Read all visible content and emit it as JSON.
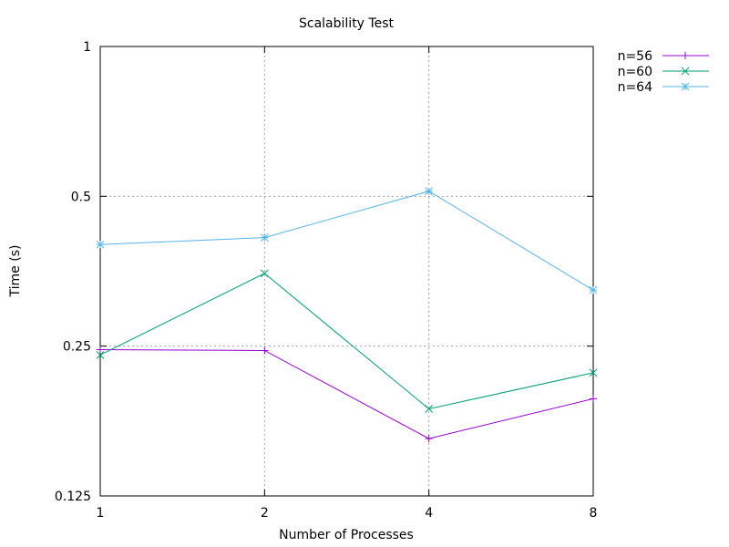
{
  "chart_data": {
    "type": "line",
    "title": "Scalability Test",
    "xlabel": "Number of Processes",
    "ylabel": "Time (s)",
    "x_scale": "log2",
    "y_scale": "log2",
    "x": [
      1,
      2,
      4,
      8
    ],
    "x_tick_labels": [
      "1",
      "2",
      "4",
      "8"
    ],
    "xlim": [
      1,
      8
    ],
    "ylim": [
      0.125,
      1
    ],
    "y_ticks": [
      0.125,
      0.25,
      0.5,
      1
    ],
    "y_tick_labels": [
      "0.125",
      "0.25",
      "0.5",
      "1"
    ],
    "grid": true,
    "legend_position": "outside-top-right",
    "series": [
      {
        "name": "n=56",
        "values": [
          0.246,
          0.245,
          0.163,
          0.196
        ],
        "color": "#9400d3",
        "marker": "plus"
      },
      {
        "name": "n=60",
        "values": [
          0.24,
          0.35,
          0.187,
          0.221
        ],
        "color": "#009e73",
        "marker": "cross"
      },
      {
        "name": "n=64",
        "values": [
          0.4,
          0.413,
          0.512,
          0.324
        ],
        "color": "#56b4e9",
        "marker": "star"
      }
    ]
  }
}
